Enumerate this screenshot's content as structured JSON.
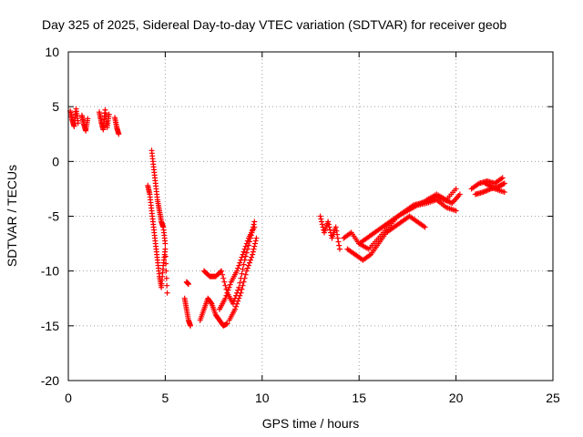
{
  "chart_data": {
    "type": "scatter",
    "title": "Day 325 of 2025, Sidereal Day-to-day VTEC variation (SDTVAR) for receiver geob",
    "xlabel": "GPS time / hours",
    "ylabel": "SDTVAR / TECUs",
    "xlim": [
      0,
      25
    ],
    "ylim": [
      -20,
      10
    ],
    "xticks": [
      "0",
      "5",
      "10",
      "15",
      "20",
      "25"
    ],
    "yticks": [
      "10",
      "5",
      "0",
      "-5",
      "-10",
      "-15",
      "-20"
    ],
    "grid": true,
    "marker": "+",
    "color": "#ff0000",
    "segments": [
      {
        "x": [
          0.1,
          0.2,
          0.3,
          0.4,
          0.5
        ],
        "y": [
          4.6,
          3.8,
          3.2,
          4.8,
          3.5
        ]
      },
      {
        "x": [
          0.7,
          0.8,
          0.9,
          1.0
        ],
        "y": [
          4.2,
          3.4,
          2.8,
          3.9
        ]
      },
      {
        "x": [
          1.6,
          1.7,
          1.8,
          1.9,
          2.0,
          2.1
        ],
        "y": [
          4.5,
          3.6,
          2.9,
          4.7,
          3.1,
          4.3
        ]
      },
      {
        "x": [
          2.4,
          2.5,
          2.6
        ],
        "y": [
          4.0,
          3.1,
          2.5
        ]
      },
      {
        "x": [
          4.1,
          4.2,
          4.3,
          4.4,
          4.5,
          4.6,
          4.7,
          4.8,
          4.9,
          5.0,
          5.1
        ],
        "y": [
          -2.2,
          -3.0,
          -4.5,
          -6.0,
          -7.5,
          -9.0,
          -10.5,
          -11.5,
          -9.5,
          -8.0,
          -12.0
        ]
      },
      {
        "x": [
          4.3,
          4.4,
          4.5,
          4.6,
          4.7,
          4.8,
          4.9,
          5.0
        ],
        "y": [
          1.0,
          -0.5,
          -2.0,
          -3.5,
          -4.5,
          -5.5,
          -6.0,
          -7.5
        ]
      },
      {
        "x": [
          6.0,
          6.1,
          6.2,
          6.3
        ],
        "y": [
          -12.5,
          -13.5,
          -14.5,
          -15.0
        ]
      },
      {
        "x": [
          6.1,
          6.2
        ],
        "y": [
          -11.0,
          -11.2
        ]
      },
      {
        "x": [
          6.8,
          7.0,
          7.2,
          7.4,
          7.6,
          7.8,
          8.0,
          8.2
        ],
        "y": [
          -14.5,
          -13.5,
          -12.5,
          -13.0,
          -14.0,
          -14.5,
          -15.0,
          -14.8
        ]
      },
      {
        "x": [
          7.0,
          7.3,
          7.6,
          7.9,
          8.2,
          8.5,
          8.8,
          9.1,
          9.4,
          9.6
        ],
        "y": [
          -10.0,
          -10.5,
          -10.5,
          -10.0,
          -12.0,
          -13.0,
          -11.5,
          -9.0,
          -7.0,
          -5.5
        ]
      },
      {
        "x": [
          7.8,
          8.1,
          8.4,
          8.7,
          9.0,
          9.3,
          9.6
        ],
        "y": [
          -13.5,
          -12.5,
          -11.0,
          -10.0,
          -8.5,
          -7.0,
          -6.0
        ]
      },
      {
        "x": [
          8.3,
          8.6,
          8.9,
          9.2,
          9.5,
          9.7
        ],
        "y": [
          -14.5,
          -13.5,
          -12.0,
          -10.0,
          -8.5,
          -7.0
        ]
      },
      {
        "x": [
          13.0,
          13.2,
          13.4,
          13.6,
          13.8,
          14.0
        ],
        "y": [
          -5.0,
          -6.5,
          -5.5,
          -7.0,
          -6.0,
          -8.0
        ]
      },
      {
        "x": [
          14.2,
          14.6,
          15.0,
          15.4,
          15.8,
          16.2,
          16.6,
          17.0,
          17.4,
          17.8,
          18.2,
          18.6,
          19.0,
          19.4,
          19.8,
          20.2
        ],
        "y": [
          -7.0,
          -6.5,
          -7.5,
          -7.0,
          -6.5,
          -6.0,
          -5.5,
          -5.0,
          -4.5,
          -4.0,
          -3.8,
          -3.5,
          -3.2,
          -3.5,
          -3.8,
          -3.0
        ]
      },
      {
        "x": [
          14.4,
          14.8,
          15.2,
          15.6,
          16.0,
          16.4,
          16.8,
          17.2,
          17.6,
          18.0,
          18.4
        ],
        "y": [
          -8.0,
          -8.5,
          -9.0,
          -8.5,
          -7.5,
          -6.5,
          -6.0,
          -5.5,
          -5.0,
          -5.5,
          -6.0
        ]
      },
      {
        "x": [
          15.0,
          15.5,
          16.0,
          16.5,
          17.0,
          17.5,
          18.0,
          18.5,
          19.0,
          19.5,
          20.0
        ],
        "y": [
          -7.5,
          -8.0,
          -7.0,
          -6.0,
          -5.0,
          -4.5,
          -4.0,
          -3.8,
          -3.5,
          -4.2,
          -4.5
        ]
      },
      {
        "x": [
          18.5,
          19.0,
          19.5,
          20.0
        ],
        "y": [
          -3.5,
          -3.0,
          -3.5,
          -2.5
        ]
      },
      {
        "x": [
          20.8,
          21.2,
          21.6,
          22.0,
          22.4
        ],
        "y": [
          -2.5,
          -2.0,
          -1.8,
          -2.0,
          -1.5
        ]
      },
      {
        "x": [
          21.0,
          21.4,
          21.8,
          22.2,
          22.5
        ],
        "y": [
          -3.0,
          -2.8,
          -2.5,
          -2.3,
          -2.0
        ]
      },
      {
        "x": [
          21.5,
          22.0,
          22.5
        ],
        "y": [
          -2.0,
          -2.5,
          -2.8
        ]
      }
    ]
  }
}
